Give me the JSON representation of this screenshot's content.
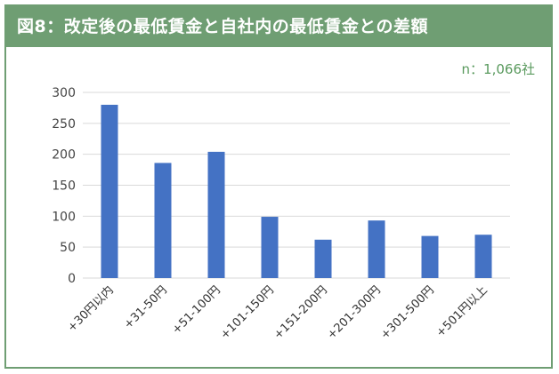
{
  "header": {
    "title": "図8：改定後の最低賃金と自社内の最低賃金との差額"
  },
  "note": "n：1,066社",
  "colors": {
    "accent": "#6f9e73",
    "bar": "#4472c4",
    "grid": "#d9d9d9"
  },
  "chart_data": {
    "type": "bar",
    "title": "図8：改定後の最低賃金と自社内の最低賃金との差額",
    "xlabel": "",
    "ylabel": "",
    "categories": [
      "+30円以内",
      "+31-50円",
      "+51-100円",
      "+101-150円",
      "+151-200円",
      "+201-300円",
      "+301-500円",
      "+501円以上"
    ],
    "values": [
      280,
      186,
      204,
      99,
      62,
      93,
      68,
      70
    ],
    "yticks": [
      0,
      50,
      100,
      150,
      200,
      250,
      300
    ],
    "ylim": [
      0,
      300
    ],
    "grid": true,
    "legend": "none"
  }
}
